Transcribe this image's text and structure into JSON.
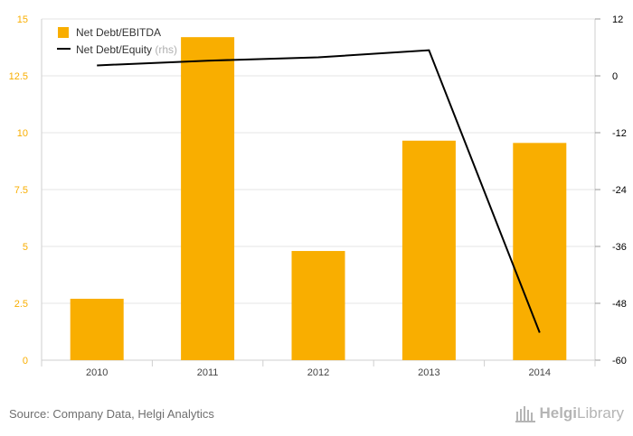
{
  "chart_data": {
    "type": "bar",
    "categories": [
      "2010",
      "2011",
      "2012",
      "2013",
      "2014"
    ],
    "series": [
      {
        "name": "Net Debt/EBITDA",
        "type": "bar",
        "axis": "left",
        "color": "#f9ae00",
        "values": [
          2.7,
          14.2,
          4.8,
          9.65,
          9.55
        ]
      },
      {
        "name": "Net Debt/Equity",
        "type": "line",
        "axis": "right",
        "color": "#000000",
        "values": [
          2.2,
          3.2,
          3.9,
          5.4,
          -54.2
        ]
      }
    ],
    "legend": {
      "entries": [
        "Net Debt/EBITDA",
        "Net Debt/Equity"
      ],
      "rhs_suffix": "(rhs)",
      "position": "top-left"
    },
    "y_left": {
      "ticks": [
        "0",
        "2.5",
        "5",
        "7.5",
        "10",
        "12.5",
        "15"
      ],
      "range": [
        0,
        15
      ],
      "color": "#f9ae00"
    },
    "y_right": {
      "ticks": [
        "-60",
        "-48",
        "-36",
        "-24",
        "-12",
        "0",
        "12"
      ],
      "range": [
        -60,
        12
      ],
      "color": "#000000"
    },
    "grid": true
  },
  "footer": {
    "source": "Source: Company Data, Helgi Analytics",
    "logo_text_bold": "Helgi",
    "logo_text": "Library"
  }
}
